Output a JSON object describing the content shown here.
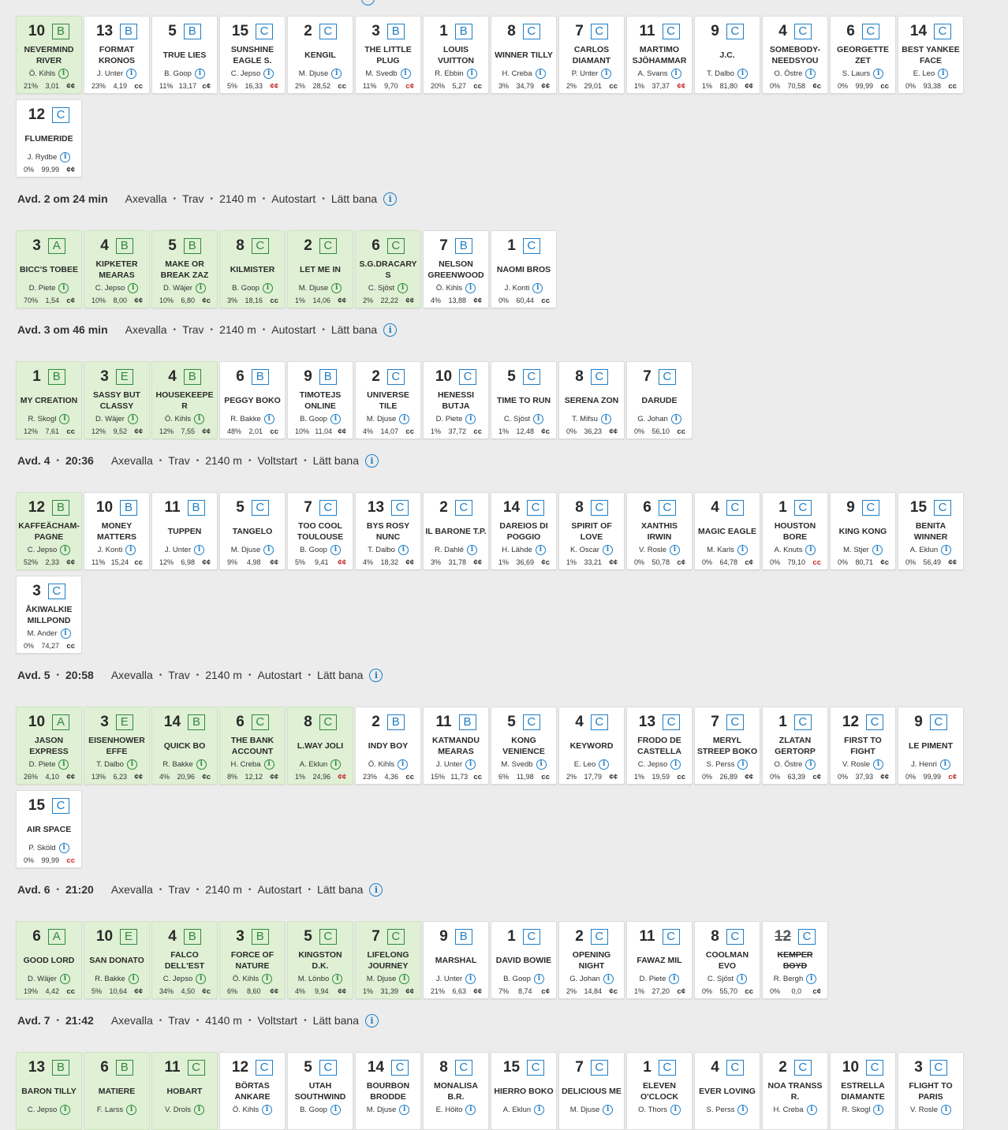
{
  "races": [
    {
      "header": null,
      "horses": [
        {
          "num": "10",
          "grade": "B",
          "name": "NEVERMIND RIVER",
          "driver": "Ö. Kihls",
          "pct": "21%",
          "odds": "3,01",
          "mark": "¢¢",
          "selected": true
        },
        {
          "num": "13",
          "grade": "B",
          "name": "FORMAT KRONOS",
          "driver": "J. Unter",
          "pct": "23%",
          "odds": "4,19",
          "mark": "cc"
        },
        {
          "num": "5",
          "grade": "B",
          "name": "TRUE LIES",
          "driver": "B. Goop",
          "pct": "11%",
          "odds": "13,17",
          "mark": "c¢"
        },
        {
          "num": "15",
          "grade": "C",
          "name": "SUNSHINE EAGLE S.",
          "driver": "C. Jepso",
          "pct": "5%",
          "odds": "16,33",
          "mark": "¢¢",
          "red": true
        },
        {
          "num": "2",
          "grade": "C",
          "name": "KENGIL",
          "driver": "M. Djuse",
          "pct": "2%",
          "odds": "28,52",
          "mark": "cc"
        },
        {
          "num": "3",
          "grade": "B",
          "name": "THE LITTLE PLUG",
          "driver": "M. Svedb",
          "pct": "11%",
          "odds": "9,70",
          "mark": "c¢",
          "red": true
        },
        {
          "num": "1",
          "grade": "B",
          "name": "LOUIS VUITTON",
          "driver": "R. Ebbin",
          "pct": "20%",
          "odds": "5,27",
          "mark": "cc"
        },
        {
          "num": "8",
          "grade": "C",
          "name": "WINNER TILLY",
          "driver": "H. Creba",
          "pct": "3%",
          "odds": "34,79",
          "mark": "¢¢"
        },
        {
          "num": "7",
          "grade": "C",
          "name": "CARLOS DIAMANT",
          "driver": "P. Unter",
          "pct": "2%",
          "odds": "29,01",
          "mark": "cc"
        },
        {
          "num": "11",
          "grade": "C",
          "name": "MARTIMO SJÖHAMMAR",
          "driver": "A. Svans",
          "pct": "1%",
          "odds": "37,37",
          "mark": "¢¢",
          "red": true
        },
        {
          "num": "9",
          "grade": "C",
          "name": "J.C.",
          "driver": "T. Dalbo",
          "pct": "1%",
          "odds": "81,80",
          "mark": "¢¢"
        },
        {
          "num": "4",
          "grade": "C",
          "name": "SOMEBODY-NEEDSYOU",
          "driver": "O. Östre",
          "pct": "0%",
          "odds": "70,58",
          "mark": "¢c"
        },
        {
          "num": "6",
          "grade": "C",
          "name": "GEORGETTE ZET",
          "driver": "S. Laurs",
          "pct": "0%",
          "odds": "99,99",
          "mark": "cc"
        },
        {
          "num": "14",
          "grade": "C",
          "name": "BEST YANKEE FACE",
          "driver": "E. Leo",
          "pct": "0%",
          "odds": "93,38",
          "mark": "cc"
        },
        {
          "num": "12",
          "grade": "C",
          "name": "FLUMERIDE",
          "driver": "J. Rydbe",
          "pct": "0%",
          "odds": "99,99",
          "mark": "¢¢"
        }
      ]
    },
    {
      "header": {
        "title": "Avd. 2 om 24 min",
        "track": "Axevalla",
        "type": "Trav",
        "distance": "2140 m",
        "start": "Autostart",
        "condition": "Lätt bana"
      },
      "horses": [
        {
          "num": "3",
          "grade": "A",
          "name": "BICC'S TOBEE",
          "driver": "D. Piete",
          "pct": "70%",
          "odds": "1,54",
          "mark": "c¢",
          "selected": true
        },
        {
          "num": "4",
          "grade": "B",
          "name": "KIPKETER MEARAS",
          "driver": "C. Jepso",
          "pct": "10%",
          "odds": "8,00",
          "mark": "¢¢",
          "selected": true
        },
        {
          "num": "5",
          "grade": "B",
          "name": "MAKE OR BREAK ZAZ",
          "driver": "D. Wäjer",
          "pct": "10%",
          "odds": "6,80",
          "mark": "¢c",
          "selected": true
        },
        {
          "num": "8",
          "grade": "C",
          "name": "KILMISTER",
          "driver": "B. Goop",
          "pct": "3%",
          "odds": "18,16",
          "mark": "cc",
          "selected": true
        },
        {
          "num": "2",
          "grade": "C",
          "name": "LET ME IN",
          "driver": "M. Djuse",
          "pct": "1%",
          "odds": "14,06",
          "mark": "¢¢",
          "selected": true
        },
        {
          "num": "6",
          "grade": "C",
          "name": "S.G.DRACARYS",
          "driver": "C. Sjöst",
          "pct": "2%",
          "odds": "22,22",
          "mark": "¢¢",
          "selected": true
        },
        {
          "num": "7",
          "grade": "B",
          "name": "NELSON GREENWOOD",
          "driver": "Ö. Kihls",
          "pct": "4%",
          "odds": "13,88",
          "mark": "¢¢"
        },
        {
          "num": "1",
          "grade": "C",
          "name": "NAOMI BROS",
          "driver": "J. Konti",
          "pct": "0%",
          "odds": "60,44",
          "mark": "cc"
        }
      ]
    },
    {
      "header": {
        "title": "Avd. 3 om 46 min",
        "track": "Axevalla",
        "type": "Trav",
        "distance": "2140 m",
        "start": "Autostart",
        "condition": "Lätt bana"
      },
      "horses": [
        {
          "num": "1",
          "grade": "B",
          "name": "MY CREATION",
          "driver": "R. Skogl",
          "pct": "12%",
          "odds": "7,61",
          "mark": "cc",
          "selected": true
        },
        {
          "num": "3",
          "grade": "E",
          "name": "SASSY BUT CLASSY",
          "driver": "D. Wäjer",
          "pct": "12%",
          "odds": "9,52",
          "mark": "¢¢",
          "selected": true
        },
        {
          "num": "4",
          "grade": "B",
          "name": "HOUSEKEEPER",
          "driver": "Ö. Kihls",
          "pct": "12%",
          "odds": "7,55",
          "mark": "¢¢",
          "selected": true
        },
        {
          "num": "6",
          "grade": "B",
          "name": "PEGGY BOKO",
          "driver": "R. Bakke",
          "pct": "48%",
          "odds": "2,01",
          "mark": "cc"
        },
        {
          "num": "9",
          "grade": "B",
          "name": "TIMOTEJS ONLINE",
          "driver": "B. Goop",
          "pct": "10%",
          "odds": "11,04",
          "mark": "¢¢"
        },
        {
          "num": "2",
          "grade": "C",
          "name": "UNIVERSE TILE",
          "driver": "M. Djuse",
          "pct": "4%",
          "odds": "14,07",
          "mark": "cc"
        },
        {
          "num": "10",
          "grade": "C",
          "name": "HENESSI BUTJA",
          "driver": "D. Piete",
          "pct": "1%",
          "odds": "37,72",
          "mark": "cc"
        },
        {
          "num": "5",
          "grade": "C",
          "name": "TIME TO RUN",
          "driver": "C. Sjöst",
          "pct": "1%",
          "odds": "12,48",
          "mark": "¢c"
        },
        {
          "num": "8",
          "grade": "C",
          "name": "SERENA ZON",
          "driver": "T. Mifsu",
          "pct": "0%",
          "odds": "36,23",
          "mark": "¢¢"
        },
        {
          "num": "7",
          "grade": "C",
          "name": "DARUDE",
          "driver": "G. Johan",
          "pct": "0%",
          "odds": "56,10",
          "mark": "cc"
        }
      ]
    },
    {
      "header": {
        "title": "Avd. 4",
        "time": "20:36",
        "track": "Axevalla",
        "type": "Trav",
        "distance": "2140 m",
        "start": "Voltstart",
        "condition": "Lätt bana"
      },
      "horses": [
        {
          "num": "12",
          "grade": "B",
          "name": "KAFFEÄCHAM-PAGNE",
          "driver": "C. Jepso",
          "pct": "52%",
          "odds": "2,33",
          "mark": "¢¢",
          "selected": true
        },
        {
          "num": "10",
          "grade": "B",
          "name": "MONEY MATTERS",
          "driver": "J. Konti",
          "pct": "11%",
          "odds": "15,24",
          "mark": "cc"
        },
        {
          "num": "11",
          "grade": "B",
          "name": "TUPPEN",
          "driver": "J. Unter",
          "pct": "12%",
          "odds": "6,98",
          "mark": "¢¢"
        },
        {
          "num": "5",
          "grade": "C",
          "name": "TANGELO",
          "driver": "M. Djuse",
          "pct": "9%",
          "odds": "4,98",
          "mark": "¢¢"
        },
        {
          "num": "7",
          "grade": "C",
          "name": "TOO COOL TOULOUSE",
          "driver": "B. Goop",
          "pct": "5%",
          "odds": "9,41",
          "mark": "¢¢",
          "red": true
        },
        {
          "num": "13",
          "grade": "C",
          "name": "BYS ROSY NUNC",
          "driver": "T. Dalbo",
          "pct": "4%",
          "odds": "18,32",
          "mark": "¢¢"
        },
        {
          "num": "2",
          "grade": "C",
          "name": "IL BARONE T.P.",
          "driver": "R. Dahlé",
          "pct": "3%",
          "odds": "31,78",
          "mark": "¢¢"
        },
        {
          "num": "14",
          "grade": "C",
          "name": "DAREIOS DI POGGIO",
          "driver": "H. Lähde",
          "pct": "1%",
          "odds": "36,69",
          "mark": "¢c"
        },
        {
          "num": "8",
          "grade": "C",
          "name": "SPIRIT OF LOVE",
          "driver": "K. Oscar",
          "pct": "1%",
          "odds": "33,21",
          "mark": "¢¢"
        },
        {
          "num": "6",
          "grade": "C",
          "name": "XANTHIS IRWIN",
          "driver": "V. Rosle",
          "pct": "0%",
          "odds": "50,78",
          "mark": "c¢"
        },
        {
          "num": "4",
          "grade": "C",
          "name": "MAGIC EAGLE",
          "driver": "M. Karls",
          "pct": "0%",
          "odds": "64,78",
          "mark": "c¢"
        },
        {
          "num": "1",
          "grade": "C",
          "name": "HOUSTON BORE",
          "driver": "A. Knuts",
          "pct": "0%",
          "odds": "79,10",
          "mark": "cc",
          "red": true
        },
        {
          "num": "9",
          "grade": "C",
          "name": "KING KONG",
          "driver": "M. Stjer",
          "pct": "0%",
          "odds": "80,71",
          "mark": "¢c"
        },
        {
          "num": "15",
          "grade": "C",
          "name": "BENITA WINNER",
          "driver": "A. Eklun",
          "pct": "0%",
          "odds": "56,49",
          "mark": "¢¢"
        },
        {
          "num": "3",
          "grade": "C",
          "name": "ÅKIWALKIE MILLPOND",
          "driver": "M. Ander",
          "pct": "0%",
          "odds": "74,27",
          "mark": "cc"
        }
      ]
    },
    {
      "header": {
        "title": "Avd. 5",
        "time": "20:58",
        "track": "Axevalla",
        "type": "Trav",
        "distance": "2140 m",
        "start": "Autostart",
        "condition": "Lätt bana"
      },
      "horses": [
        {
          "num": "10",
          "grade": "A",
          "name": "JASON EXPRESS",
          "driver": "D. Piete",
          "pct": "26%",
          "odds": "4,10",
          "mark": "¢¢",
          "selected": true
        },
        {
          "num": "3",
          "grade": "E",
          "name": "EISENHOWER EFFE",
          "driver": "T. Dalbo",
          "pct": "13%",
          "odds": "6,23",
          "mark": "¢¢",
          "selected": true
        },
        {
          "num": "14",
          "grade": "B",
          "name": "QUICK BO",
          "driver": "R. Bakke",
          "pct": "4%",
          "odds": "20,96",
          "mark": "¢c",
          "selected": true
        },
        {
          "num": "6",
          "grade": "C",
          "name": "THE BANK ACCOUNT",
          "driver": "H. Creba",
          "pct": "8%",
          "odds": "12,12",
          "mark": "¢¢",
          "selected": true
        },
        {
          "num": "8",
          "grade": "C",
          "name": "L.WAY JOLI",
          "driver": "A. Eklun",
          "pct": "1%",
          "odds": "24,96",
          "mark": "¢¢",
          "selected": true,
          "red": true
        },
        {
          "num": "2",
          "grade": "B",
          "name": "INDY BOY",
          "driver": "Ö. Kihls",
          "pct": "23%",
          "odds": "4,36",
          "mark": "cc"
        },
        {
          "num": "11",
          "grade": "B",
          "name": "KATMANDU MEARAS",
          "driver": "J. Unter",
          "pct": "15%",
          "odds": "11,73",
          "mark": "cc"
        },
        {
          "num": "5",
          "grade": "C",
          "name": "KONG VENIENCE",
          "driver": "M. Svedb",
          "pct": "6%",
          "odds": "11,98",
          "mark": "cc"
        },
        {
          "num": "4",
          "grade": "C",
          "name": "KEYWORD",
          "driver": "E. Leo",
          "pct": "2%",
          "odds": "17,79",
          "mark": "¢¢"
        },
        {
          "num": "13",
          "grade": "C",
          "name": "FRODO DE CASTELLA",
          "driver": "C. Jepso",
          "pct": "1%",
          "odds": "19,59",
          "mark": "cc"
        },
        {
          "num": "7",
          "grade": "C",
          "name": "MERYL STREEP BOKO",
          "driver": "S. Perss",
          "pct": "0%",
          "odds": "26,89",
          "mark": "¢¢"
        },
        {
          "num": "1",
          "grade": "C",
          "name": "ZLATAN GERTORP",
          "driver": "O. Östre",
          "pct": "0%",
          "odds": "63,39",
          "mark": "c¢"
        },
        {
          "num": "12",
          "grade": "C",
          "name": "FIRST TO FIGHT",
          "driver": "V. Rosle",
          "pct": "0%",
          "odds": "37,93",
          "mark": "¢¢"
        },
        {
          "num": "9",
          "grade": "C",
          "name": "LE PIMENT",
          "driver": "J. Henri",
          "pct": "0%",
          "odds": "99,99",
          "mark": "c¢",
          "red": true
        },
        {
          "num": "15",
          "grade": "C",
          "name": "AIR SPACE",
          "driver": "P. Sköld",
          "pct": "0%",
          "odds": "99,99",
          "mark": "cc",
          "red": true
        }
      ]
    },
    {
      "header": {
        "title": "Avd. 6",
        "time": "21:20",
        "track": "Axevalla",
        "type": "Trav",
        "distance": "2140 m",
        "start": "Autostart",
        "condition": "Lätt bana"
      },
      "horses": [
        {
          "num": "6",
          "grade": "A",
          "name": "GOOD LORD",
          "driver": "D. Wäjer",
          "pct": "19%",
          "odds": "4,42",
          "mark": "cc",
          "selected": true
        },
        {
          "num": "10",
          "grade": "E",
          "name": "SAN DONATO",
          "driver": "R. Bakke",
          "pct": "5%",
          "odds": "10,64",
          "mark": "¢¢",
          "selected": true
        },
        {
          "num": "4",
          "grade": "B",
          "name": "FALCO DELL'EST",
          "driver": "C. Jepso",
          "pct": "34%",
          "odds": "4,50",
          "mark": "¢c",
          "selected": true
        },
        {
          "num": "3",
          "grade": "B",
          "name": "FORCE OF NATURE",
          "driver": "Ö. Kihls",
          "pct": "6%",
          "odds": "8,60",
          "mark": "¢¢",
          "selected": true
        },
        {
          "num": "5",
          "grade": "C",
          "name": "KINGSTON D.K.",
          "driver": "M. Lönbo",
          "pct": "4%",
          "odds": "9,94",
          "mark": "¢¢",
          "selected": true
        },
        {
          "num": "7",
          "grade": "C",
          "name": "LIFELONG JOURNEY",
          "driver": "M. Djuse",
          "pct": "1%",
          "odds": "31,39",
          "mark": "¢¢",
          "selected": true
        },
        {
          "num": "9",
          "grade": "B",
          "name": "MARSHAL",
          "driver": "J. Unter",
          "pct": "21%",
          "odds": "6,63",
          "mark": "¢¢"
        },
        {
          "num": "1",
          "grade": "C",
          "name": "DAVID BOWIE",
          "driver": "B. Goop",
          "pct": "7%",
          "odds": "8,74",
          "mark": "c¢"
        },
        {
          "num": "2",
          "grade": "C",
          "name": "OPENING NIGHT",
          "driver": "G. Johan",
          "pct": "2%",
          "odds": "14,84",
          "mark": "¢c"
        },
        {
          "num": "11",
          "grade": "C",
          "name": "FAWAZ MIL",
          "driver": "D. Piete",
          "pct": "1%",
          "odds": "27,20",
          "mark": "c¢"
        },
        {
          "num": "8",
          "grade": "C",
          "name": "COOLMAN EVO",
          "driver": "C. Sjöst",
          "pct": "0%",
          "odds": "55,70",
          "mark": "cc"
        },
        {
          "num": "12",
          "grade": "C",
          "name": "KEMPER BOYD",
          "driver": "R. Bergh",
          "pct": "0%",
          "odds": "0,0",
          "mark": "c¢",
          "scratched": true
        }
      ]
    },
    {
      "header": {
        "title": "Avd. 7",
        "time": "21:42",
        "track": "Axevalla",
        "type": "Trav",
        "distance": "4140 m",
        "start": "Voltstart",
        "condition": "Lätt bana"
      },
      "horses": [
        {
          "num": "13",
          "grade": "B",
          "name": "BARON TILLY",
          "driver": "C. Jepso",
          "selected": true
        },
        {
          "num": "6",
          "grade": "B",
          "name": "MATIERE",
          "driver": "F. Larss",
          "selected": true
        },
        {
          "num": "11",
          "grade": "C",
          "name": "HOBART",
          "driver": "V. Drols",
          "selected": true
        },
        {
          "num": "12",
          "grade": "C",
          "name": "BÖRTAS ANKARE",
          "driver": "Ö. Kihls"
        },
        {
          "num": "5",
          "grade": "C",
          "name": "UTAH SOUTHWIND",
          "driver": "B. Goop"
        },
        {
          "num": "14",
          "grade": "C",
          "name": "BOURBON BRODDE",
          "driver": "M. Djuse"
        },
        {
          "num": "8",
          "grade": "C",
          "name": "MONALISA B.R.",
          "driver": "E. Höito"
        },
        {
          "num": "15",
          "grade": "C",
          "name": "HIERRO BOKO",
          "driver": "A. Eklun"
        },
        {
          "num": "7",
          "grade": "C",
          "name": "DELICIOUS ME",
          "driver": "M. Djuse"
        },
        {
          "num": "1",
          "grade": "C",
          "name": "ELEVEN O'CLOCK",
          "driver": "O. Thors"
        },
        {
          "num": "4",
          "grade": "C",
          "name": "EVER LOVING",
          "driver": "S. Perss"
        },
        {
          "num": "2",
          "grade": "C",
          "name": "NOA TRANSS R.",
          "driver": "H. Creba"
        },
        {
          "num": "10",
          "grade": "C",
          "name": "ESTRELLA DIAMANTE",
          "driver": "R. Skogl"
        },
        {
          "num": "3",
          "grade": "C",
          "name": "FLIGHT TO PARIS",
          "driver": "V. Rosle"
        }
      ]
    }
  ]
}
